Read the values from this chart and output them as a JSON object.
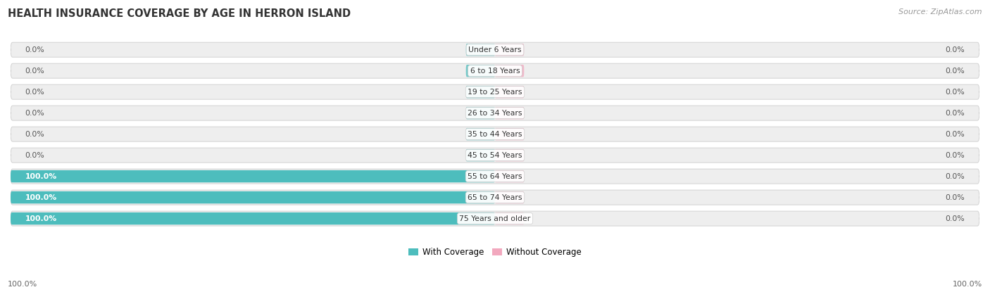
{
  "title": "HEALTH INSURANCE COVERAGE BY AGE IN HERRON ISLAND",
  "source": "Source: ZipAtlas.com",
  "categories": [
    "Under 6 Years",
    "6 to 18 Years",
    "19 to 25 Years",
    "26 to 34 Years",
    "35 to 44 Years",
    "45 to 54 Years",
    "55 to 64 Years",
    "65 to 74 Years",
    "75 Years and older"
  ],
  "with_coverage": [
    0.0,
    0.0,
    0.0,
    0.0,
    0.0,
    0.0,
    100.0,
    100.0,
    100.0
  ],
  "without_coverage": [
    0.0,
    0.0,
    0.0,
    0.0,
    0.0,
    0.0,
    0.0,
    0.0,
    0.0
  ],
  "color_with": "#4DBDBD",
  "color_without": "#F2A8BE",
  "bar_bg_color": "#eeeeee",
  "fig_bg_color": "#ffffff",
  "title_fontsize": 10.5,
  "bar_height": 0.58,
  "stub_size": 6.0,
  "xlim_left": -100,
  "xlim_right": 100
}
